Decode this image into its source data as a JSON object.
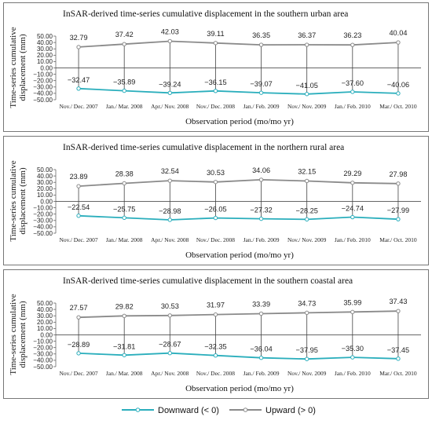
{
  "legend": {
    "downward_label": "Downward (< 0)",
    "upward_label": "Upward (> 0)"
  },
  "colors": {
    "downward": "#2aaebc",
    "upward": "#8a8a8a",
    "zero_line": "#333333"
  },
  "chart_data": [
    {
      "type": "line",
      "title": "InSAR-derived time-series cumulative displacement in the southern urban area",
      "xlabel": "Observation period (mo/mo yr)",
      "ylabel": [
        "Time-series cumulative",
        "displacement (mm)"
      ],
      "ylim": [
        -50,
        50
      ],
      "yticks": [
        "50.00",
        "40.00",
        "30.00",
        "20.00",
        "10.00",
        "0.00",
        "−10.00",
        "−20.00",
        "−30.00",
        "−40.00",
        "−50.00"
      ],
      "categories": [
        "Nov./ Dec. 2007",
        "Jan./ Mar. 2008",
        "Apr./ Nov. 2008",
        "Nov./ Dec. 2008",
        "Jan./ Feb. 2009",
        "Nov./ Nov. 2009",
        "Jan./ Feb. 2010",
        "Mar./ Oct. 2010"
      ],
      "series": [
        {
          "name": "Upward (> 0)",
          "values": [
            32.79,
            37.42,
            42.03,
            39.11,
            36.35,
            36.37,
            36.23,
            40.04
          ],
          "labels": [
            "32.79",
            "37.42",
            "42.03",
            "39.11",
            "36.35",
            "36.37",
            "36.23",
            "40.04"
          ]
        },
        {
          "name": "Downward (< 0)",
          "values": [
            -32.47,
            -35.89,
            -39.24,
            -36.15,
            -39.07,
            -41.05,
            -37.6,
            -40.06
          ],
          "labels": [
            "−32.47",
            "−35.89",
            "−39.24",
            "−36.15",
            "−39.07",
            "−41.05",
            "−37.60",
            "−40.06"
          ]
        }
      ]
    },
    {
      "type": "line",
      "title": "InSAR-derived time-series cumulative displacement in the northern rural area",
      "xlabel": "Observation period (mo/mo yr)",
      "ylabel": [
        "Time-series cumulative",
        "displacement (mm)"
      ],
      "ylim": [
        -50,
        50
      ],
      "yticks": [
        "50.00",
        "40.00",
        "30.00",
        "20.00",
        "10.00",
        "0.00",
        "−10.00",
        "−20.00",
        "−30.00",
        "−40.00",
        "−50.00"
      ],
      "categories": [
        "Nov./ Dec. 2007",
        "Jan./ Mar. 2008",
        "Apr./ Nov. 2008",
        "Nov./ Dec. 2008",
        "Jan./ Feb. 2009",
        "Nov./ Nov. 2009",
        "Jan./ Feb. 2010",
        "Mar./ Oct. 2010"
      ],
      "series": [
        {
          "name": "Upward (> 0)",
          "values": [
            23.89,
            28.38,
            32.54,
            30.53,
            34.06,
            32.15,
            29.29,
            27.98
          ],
          "labels": [
            "23.89",
            "28.38",
            "32.54",
            "30.53",
            "34.06",
            "32.15",
            "29.29",
            "27.98"
          ]
        },
        {
          "name": "Downward (< 0)",
          "values": [
            -22.54,
            -25.75,
            -28.98,
            -26.05,
            -27.32,
            -28.25,
            -24.74,
            -27.99
          ],
          "labels": [
            "−22.54",
            "−25.75",
            "−28.98",
            "−26.05",
            "−27.32",
            "−28.25",
            "−24.74",
            "−27.99"
          ]
        }
      ]
    },
    {
      "type": "line",
      "title": "InSAR-derived time-series cumulative displacement in the southern coastal area",
      "xlabel": "Observation period (mo/mo yr)",
      "ylabel": [
        "Time-series cumulative",
        "displacement (mm)"
      ],
      "ylim": [
        -50,
        50
      ],
      "yticks": [
        "50.00",
        "40.00",
        "30.00",
        "20.00",
        "10.00",
        "0.00",
        "−10.00",
        "−20.00",
        "−30.00",
        "−40.00",
        "−50.00"
      ],
      "categories": [
        "Nov./ Dec. 2007",
        "Jan./ Mar. 2008",
        "Apr./ Nov. 2008",
        "Nov./ Dec. 2008",
        "Jan./ Feb. 2009",
        "Nov./ Nov. 2009",
        "Jan./ Feb. 2010",
        "Mar./ Oct. 2010"
      ],
      "series": [
        {
          "name": "Upward (> 0)",
          "values": [
            27.57,
            29.82,
            30.53,
            31.97,
            33.39,
            34.73,
            35.99,
            37.43
          ],
          "labels": [
            "27.57",
            "29.82",
            "30.53",
            "31.97",
            "33.39",
            "34.73",
            "35.99",
            "37.43"
          ]
        },
        {
          "name": "Downward (< 0)",
          "values": [
            -28.89,
            -31.81,
            -28.67,
            -32.35,
            -36.04,
            -37.95,
            -35.3,
            -37.45
          ],
          "labels": [
            "−28.89",
            "−31.81",
            "−28.67",
            "−32.35",
            "−36.04",
            "−37.95",
            "−35.30",
            "−37.45"
          ]
        }
      ]
    }
  ]
}
